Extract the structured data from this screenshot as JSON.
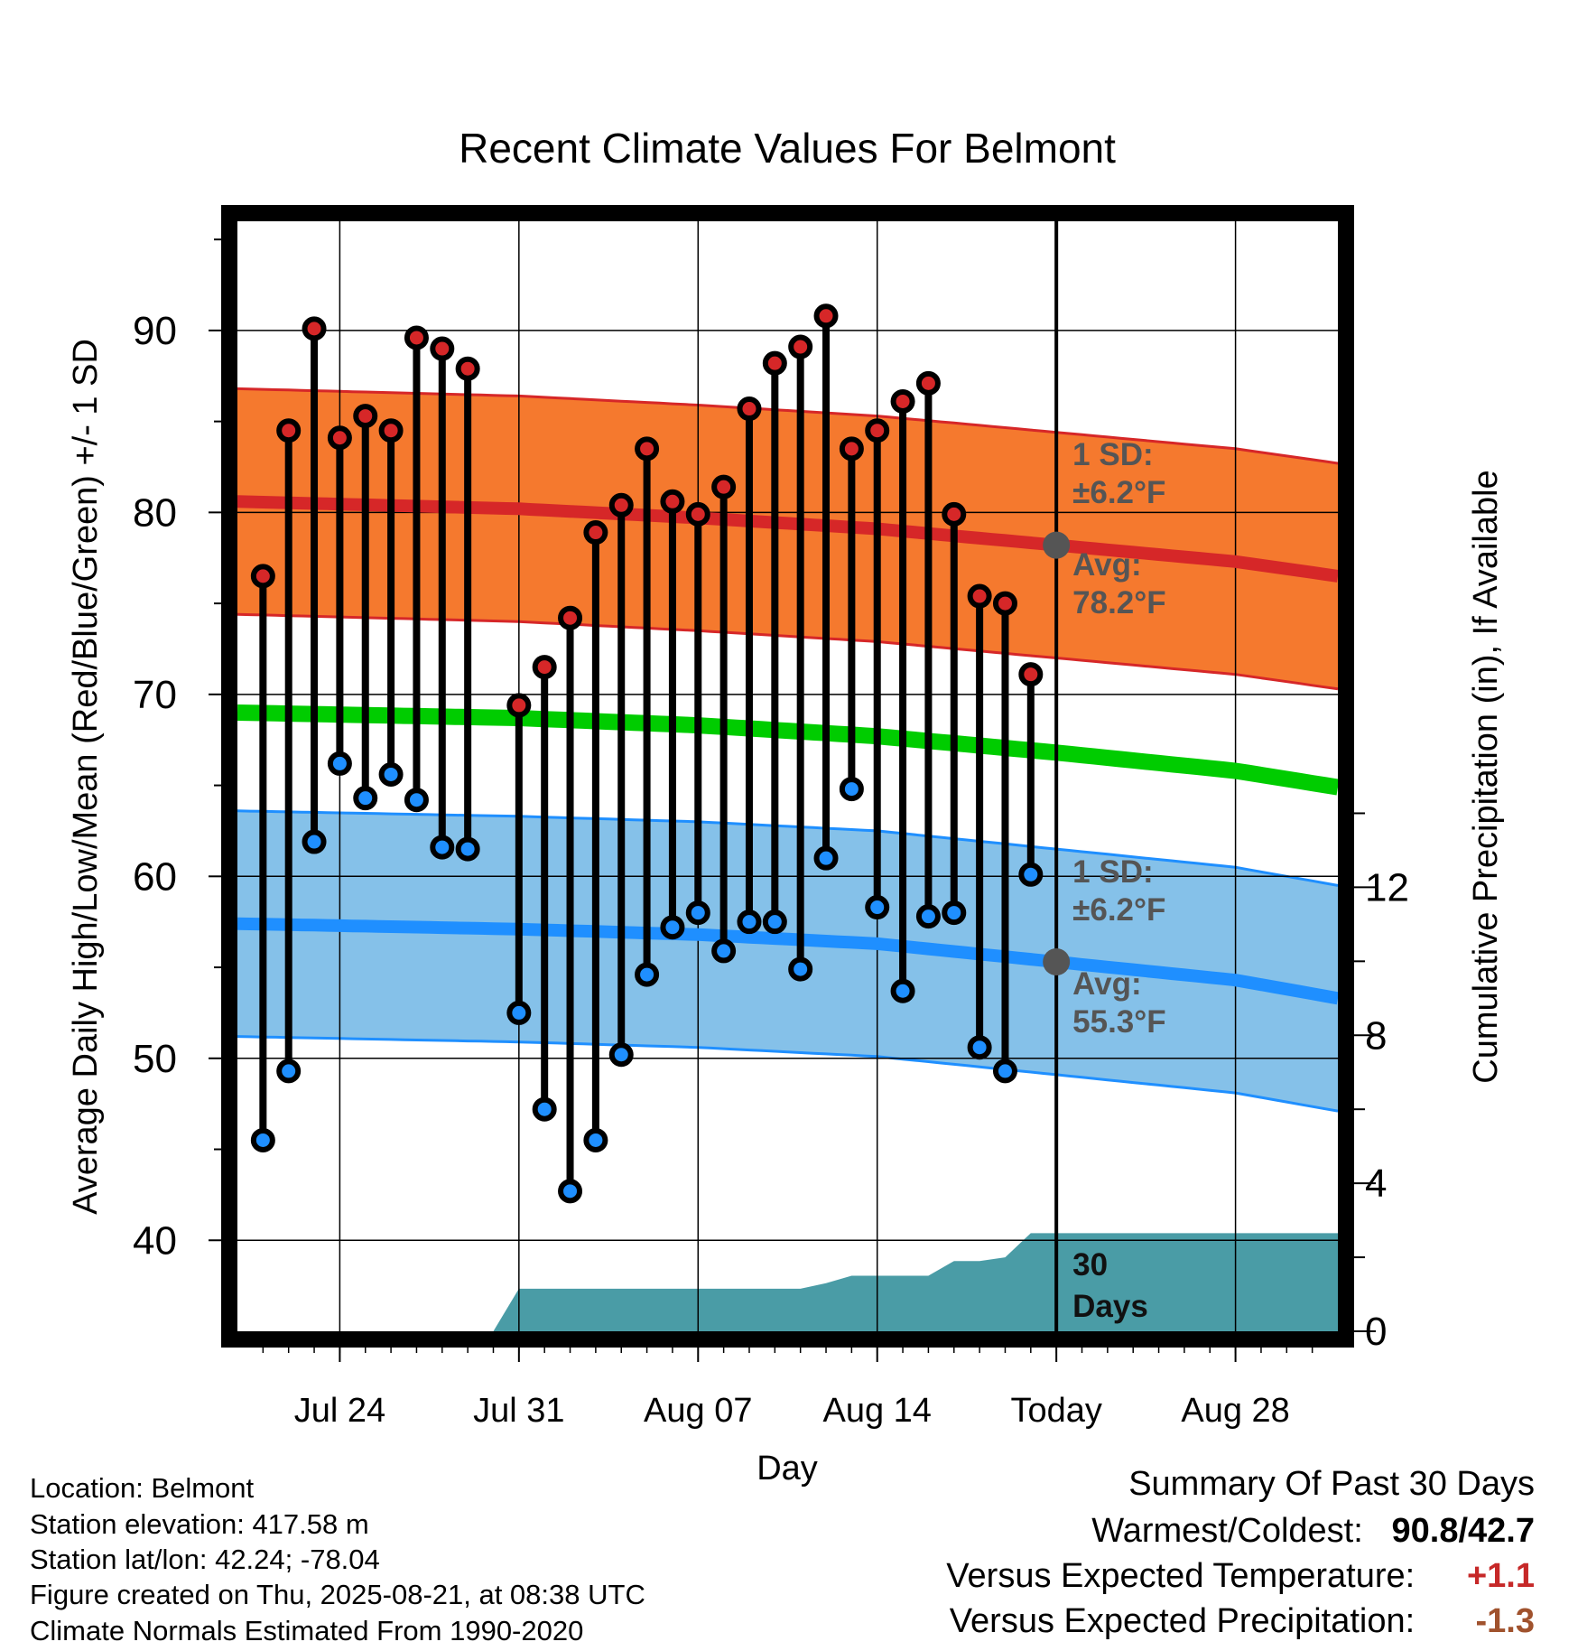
{
  "chart_data": {
    "type": "line",
    "title": "Recent Climate Values For Belmont",
    "xlabel": "Day",
    "ylabel": "Average Daily High/Low/Mean (Red/Blue/Green) +/- 1 SD",
    "y2label": "Cumulative Precipitation (in), If Available",
    "ylim": [
      35,
      96
    ],
    "y2lim": [
      0,
      30
    ],
    "xlim": [
      "2025-07-20",
      "2025-09-01"
    ],
    "x_ticks": [
      {
        "date": "2025-07-24",
        "label": "Jul 24"
      },
      {
        "date": "2025-07-31",
        "label": "Jul 31"
      },
      {
        "date": "2025-08-07",
        "label": "Aug 07"
      },
      {
        "date": "2025-08-14",
        "label": "Aug 14"
      },
      {
        "date": "2025-08-21",
        "label": "Today"
      },
      {
        "date": "2025-08-28",
        "label": "Aug 28"
      }
    ],
    "y_ticks": [
      40,
      50,
      60,
      70,
      80,
      90
    ],
    "y2_ticks": [
      0,
      4,
      8,
      12
    ],
    "grid": true,
    "today": "2025-08-21",
    "days": [
      "2025-07-21",
      "2025-07-22",
      "2025-07-23",
      "2025-07-24",
      "2025-07-25",
      "2025-07-26",
      "2025-07-27",
      "2025-07-28",
      "2025-07-29",
      "2025-07-30",
      "2025-07-31",
      "2025-08-01",
      "2025-08-02",
      "2025-08-03",
      "2025-08-04",
      "2025-08-05",
      "2025-08-06",
      "2025-08-07",
      "2025-08-08",
      "2025-08-09",
      "2025-08-10",
      "2025-08-11",
      "2025-08-12",
      "2025-08-13",
      "2025-08-14",
      "2025-08-15",
      "2025-08-16",
      "2025-08-17",
      "2025-08-18",
      "2025-08-19",
      "2025-08-20"
    ],
    "highs": [
      76.5,
      84.5,
      90.1,
      84.1,
      85.3,
      84.5,
      89.6,
      89.0,
      87.9,
      null,
      69.4,
      71.5,
      74.2,
      78.9,
      80.4,
      83.5,
      80.6,
      79.9,
      81.4,
      85.7,
      88.2,
      89.1,
      90.8,
      83.5,
      84.5,
      86.1,
      87.1,
      79.9,
      75.4,
      75.0,
      71.1
    ],
    "lows": [
      45.5,
      49.3,
      61.9,
      66.2,
      64.3,
      65.6,
      64.2,
      61.6,
      61.5,
      null,
      52.5,
      47.2,
      42.7,
      45.5,
      50.2,
      54.6,
      57.2,
      58.0,
      55.9,
      57.5,
      57.5,
      54.9,
      61.0,
      64.8,
      58.3,
      53.7,
      57.8,
      58.0,
      50.6,
      49.3,
      60.1
    ],
    "normals_x": [
      "2025-07-20",
      "2025-07-31",
      "2025-08-07",
      "2025-08-14",
      "2025-08-21",
      "2025-08-28",
      "2025-09-01"
    ],
    "series": [
      {
        "name": "Avg High",
        "color": "#d62728",
        "values": [
          80.6,
          80.2,
          79.7,
          79.1,
          78.2,
          77.3,
          76.5
        ]
      },
      {
        "name": "Avg Low",
        "color": "#1f8fff",
        "values": [
          57.4,
          57.1,
          56.8,
          56.3,
          55.3,
          54.3,
          53.3
        ]
      },
      {
        "name": "Avg Mean",
        "color": "#00cc00",
        "values": [
          69.0,
          68.7,
          68.3,
          67.7,
          66.8,
          65.8,
          64.9
        ]
      }
    ],
    "sd_high": 6.2,
    "sd_low": 6.2,
    "sd_band_colors": {
      "high": "#f5792e",
      "low": "#85c1e9",
      "high_edge": "#d62728",
      "low_edge": "#1f8fff"
    },
    "precip": {
      "color": "#4a9ca6",
      "x": [
        "2025-07-30",
        "2025-07-31",
        "2025-08-11",
        "2025-08-12",
        "2025-08-13",
        "2025-08-14",
        "2025-08-15",
        "2025-08-16",
        "2025-08-17",
        "2025-08-18",
        "2025-08-19",
        "2025-08-20",
        "2025-09-01"
      ],
      "values": [
        0,
        1.15,
        1.15,
        1.3,
        1.5,
        1.5,
        1.5,
        1.5,
        1.9,
        1.9,
        2.0,
        2.65,
        2.65
      ]
    },
    "annotations": {
      "high_sd": [
        "1 SD:",
        "±6.2°F"
      ],
      "high_avg": [
        "Avg:",
        "78.2°F"
      ],
      "low_sd": [
        "1 SD:",
        "±6.2°F"
      ],
      "low_avg": [
        "Avg:",
        "55.3°F"
      ],
      "days": [
        "30",
        "Days"
      ]
    }
  },
  "info": {
    "location": "Location: Belmont",
    "elevation": "Station elevation: 417.58 m",
    "latlon": "Station lat/lon: 42.24; -78.04",
    "created": "Figure created on Thu, 2025-08-21, at 08:38 UTC",
    "normals": "Climate Normals Estimated From 1990-2020"
  },
  "summary": {
    "title": "Summary Of Past 30 Days",
    "warm_cold_label": "Warmest/Coldest:",
    "warm": "90.8",
    "sep": "/",
    "cold": "42.7",
    "temp_label": "Versus Expected Temperature:",
    "temp_value": "+1.1",
    "temp_color": "#c62828",
    "precip_label": "Versus Expected Precipitation:",
    "precip_value": "-1.3",
    "precip_color": "#a0522d"
  }
}
